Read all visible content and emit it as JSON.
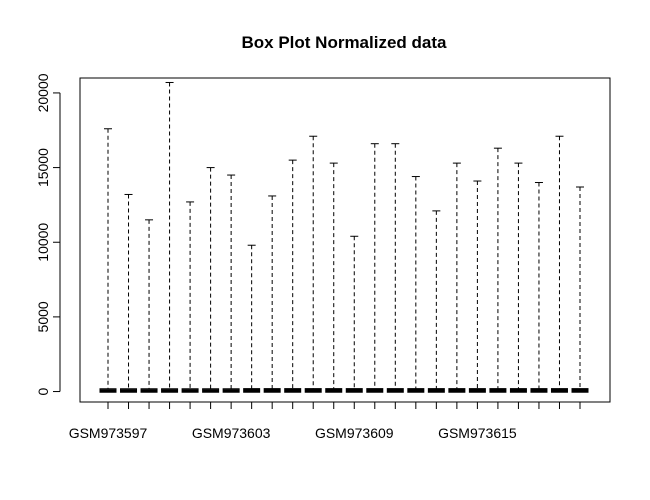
{
  "chart_data": {
    "type": "box",
    "title": "Box Plot Normalized data",
    "xlabel": "",
    "ylabel": "",
    "ylim": [
      -700,
      21000
    ],
    "yticks": [
      0,
      5000,
      10000,
      15000,
      20000
    ],
    "x_tick_labels_shown": [
      "GSM973597",
      "GSM973603",
      "GSM973609",
      "GSM973615"
    ],
    "x_tick_label_every": 6,
    "grid": false,
    "series": [
      {
        "name": "GSM973597",
        "min": 0,
        "q1": 20,
        "median": 60,
        "q3": 120,
        "max": 17600
      },
      {
        "name": "",
        "min": 0,
        "q1": 20,
        "median": 60,
        "q3": 120,
        "max": 13200
      },
      {
        "name": "",
        "min": 0,
        "q1": 20,
        "median": 60,
        "q3": 120,
        "max": 11500
      },
      {
        "name": "",
        "min": 0,
        "q1": 20,
        "median": 60,
        "q3": 120,
        "max": 20700
      },
      {
        "name": "",
        "min": 0,
        "q1": 20,
        "median": 60,
        "q3": 120,
        "max": 12700
      },
      {
        "name": "",
        "min": 0,
        "q1": 20,
        "median": 60,
        "q3": 120,
        "max": 15000
      },
      {
        "name": "GSM973603",
        "min": 0,
        "q1": 20,
        "median": 60,
        "q3": 120,
        "max": 14500
      },
      {
        "name": "",
        "min": 0,
        "q1": 20,
        "median": 70,
        "q3": 130,
        "max": 9800
      },
      {
        "name": "",
        "min": 0,
        "q1": 20,
        "median": 70,
        "q3": 130,
        "max": 13100
      },
      {
        "name": "",
        "min": 0,
        "q1": 20,
        "median": 70,
        "q3": 130,
        "max": 15500
      },
      {
        "name": "",
        "min": 0,
        "q1": 20,
        "median": 70,
        "q3": 130,
        "max": 17100
      },
      {
        "name": "",
        "min": 0,
        "q1": 20,
        "median": 70,
        "q3": 130,
        "max": 15300
      },
      {
        "name": "GSM973609",
        "min": 0,
        "q1": 20,
        "median": 70,
        "q3": 130,
        "max": 10400
      },
      {
        "name": "",
        "min": 0,
        "q1": 20,
        "median": 70,
        "q3": 130,
        "max": 16600
      },
      {
        "name": "",
        "min": 0,
        "q1": 20,
        "median": 70,
        "q3": 130,
        "max": 16600
      },
      {
        "name": "",
        "min": 0,
        "q1": 20,
        "median": 70,
        "q3": 130,
        "max": 14400
      },
      {
        "name": "",
        "min": 0,
        "q1": 20,
        "median": 70,
        "q3": 130,
        "max": 12100
      },
      {
        "name": "",
        "min": 0,
        "q1": 20,
        "median": 70,
        "q3": 130,
        "max": 15300
      },
      {
        "name": "GSM973615",
        "min": 0,
        "q1": 20,
        "median": 70,
        "q3": 130,
        "max": 14100
      },
      {
        "name": "",
        "min": 0,
        "q1": 20,
        "median": 70,
        "q3": 130,
        "max": 16300
      },
      {
        "name": "",
        "min": 0,
        "q1": 20,
        "median": 70,
        "q3": 130,
        "max": 15300
      },
      {
        "name": "",
        "min": 0,
        "q1": 20,
        "median": 70,
        "q3": 130,
        "max": 14000
      },
      {
        "name": "",
        "min": 0,
        "q1": 20,
        "median": 70,
        "q3": 130,
        "max": 17100
      },
      {
        "name": "",
        "min": 0,
        "q1": 20,
        "median": 70,
        "q3": 130,
        "max": 13700
      }
    ],
    "colors": {
      "box": "#000000",
      "whisker": "#000000",
      "background": "#ffffff"
    }
  }
}
